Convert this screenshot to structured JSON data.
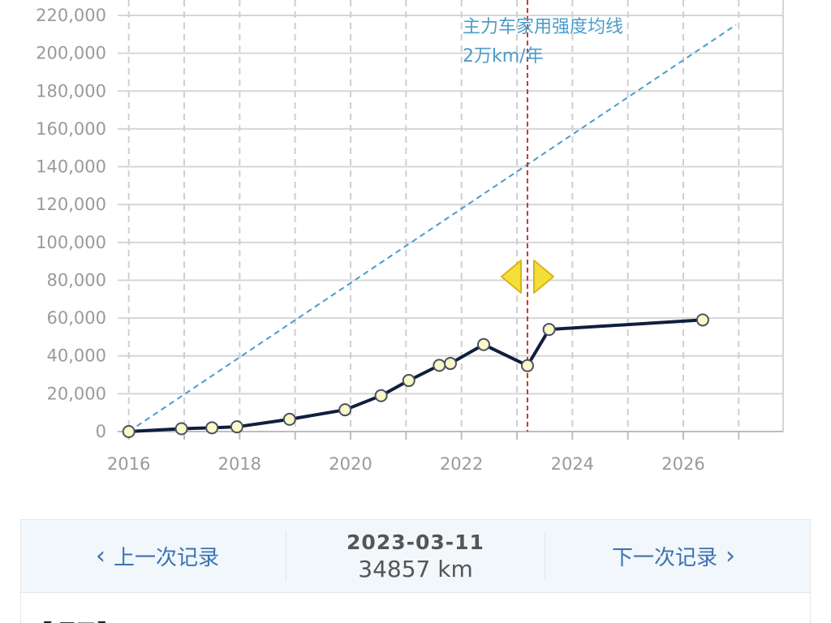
{
  "chart_data": {
    "type": "line",
    "title": "",
    "xlabel": "",
    "ylabel": "",
    "xlim": [
      2015.8,
      2027.8
    ],
    "ylim": [
      0,
      220000
    ],
    "x_ticks": [
      2016,
      2018,
      2020,
      2022,
      2024,
      2026
    ],
    "y_ticks": [
      0,
      20000,
      40000,
      60000,
      80000,
      100000,
      120000,
      140000,
      160000,
      180000,
      200000,
      220000
    ],
    "y_tick_labels": [
      "0",
      "20,000",
      "40,000",
      "60,000",
      "80,000",
      "100,000",
      "120,000",
      "140,000",
      "160,000",
      "180,000",
      "200,000",
      "220,000"
    ],
    "grid": true,
    "series": [
      {
        "name": "",
        "color": "#0f1f3d",
        "marker_color": "#fafac8",
        "x": [
          2016.0,
          2016.95,
          2017.5,
          2017.95,
          2018.9,
          2019.9,
          2020.55,
          2021.05,
          2021.6,
          2021.8,
          2022.4,
          2023.19,
          2023.58,
          2026.35
        ],
        "y": [
          0,
          1500,
          2000,
          2500,
          6500,
          11500,
          19000,
          27000,
          35000,
          36000,
          46000,
          34857,
          54000,
          59000
        ]
      }
    ],
    "reference_line": {
      "label_line1": "主力车家用强度均线",
      "label_line2": "2万km/年",
      "color": "#4a9cc9",
      "x": [
        2016.0,
        2026.95
      ],
      "y": [
        0,
        215000
      ]
    },
    "selected_marker": {
      "x": 2023.19,
      "color": "#c83a2f"
    }
  },
  "nav": {
    "prev_label": "上一次记录",
    "next_label": "下一次记录",
    "prev_icon": "chevron-left-icon",
    "next_icon": "chevron-right-icon",
    "date": "2023-03-11",
    "mileage": "34857 km"
  },
  "section": {
    "title": "【项目】"
  }
}
